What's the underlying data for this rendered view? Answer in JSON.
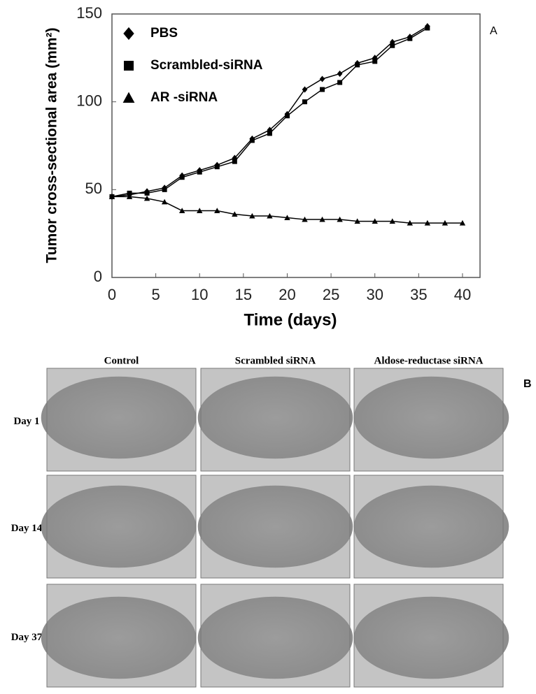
{
  "chart_data": {
    "type": "line",
    "xlabel": "Time (days)",
    "ylabel": "Tumor cross-sectional area (mm²)",
    "xlim": [
      0,
      42
    ],
    "xticks": [
      0,
      5,
      10,
      15,
      20,
      25,
      30,
      35,
      40
    ],
    "ylim": [
      0,
      150
    ],
    "yticks": [
      0,
      50,
      100,
      150
    ],
    "legend": "upper left",
    "series": [
      {
        "name": "PBS",
        "color": "#000000",
        "marker": "diamond",
        "x": [
          0,
          2,
          4,
          6,
          8,
          10,
          12,
          14,
          16,
          18,
          20,
          22,
          24,
          26,
          28,
          30,
          32,
          34,
          36
        ],
        "values": [
          46,
          47,
          49,
          51,
          58,
          61,
          64,
          68,
          79,
          84,
          93,
          107,
          113,
          116,
          122,
          125,
          134,
          137,
          143
        ]
      },
      {
        "name": "Scrambled-siRNA",
        "color": "#000000",
        "marker": "square",
        "x": [
          0,
          2,
          4,
          6,
          8,
          10,
          12,
          14,
          16,
          18,
          20,
          22,
          24,
          26,
          28,
          30,
          32,
          34,
          36
        ],
        "values": [
          46,
          48,
          48,
          50,
          57,
          60,
          63,
          66,
          78,
          82,
          92,
          100,
          107,
          111,
          121,
          123,
          132,
          136,
          142
        ]
      },
      {
        "name": "AR -siRNA",
        "color": "#000000",
        "marker": "triangle",
        "x": [
          0,
          2,
          4,
          6,
          8,
          10,
          12,
          14,
          16,
          18,
          20,
          22,
          24,
          26,
          28,
          30,
          32,
          34,
          36,
          38,
          40
        ],
        "values": [
          46,
          46,
          45,
          43,
          38,
          38,
          38,
          36,
          35,
          35,
          34,
          33,
          33,
          33,
          32,
          32,
          32,
          31,
          31,
          31,
          31
        ]
      }
    ]
  },
  "panel_labels": {
    "a": "A",
    "b": "B"
  },
  "photo_grid": {
    "columns": [
      "Control",
      "Scrambled siRNA",
      "Aldose-reductase siRNA"
    ],
    "rows": [
      "Day 1",
      "Day 14",
      "Day 37"
    ]
  }
}
